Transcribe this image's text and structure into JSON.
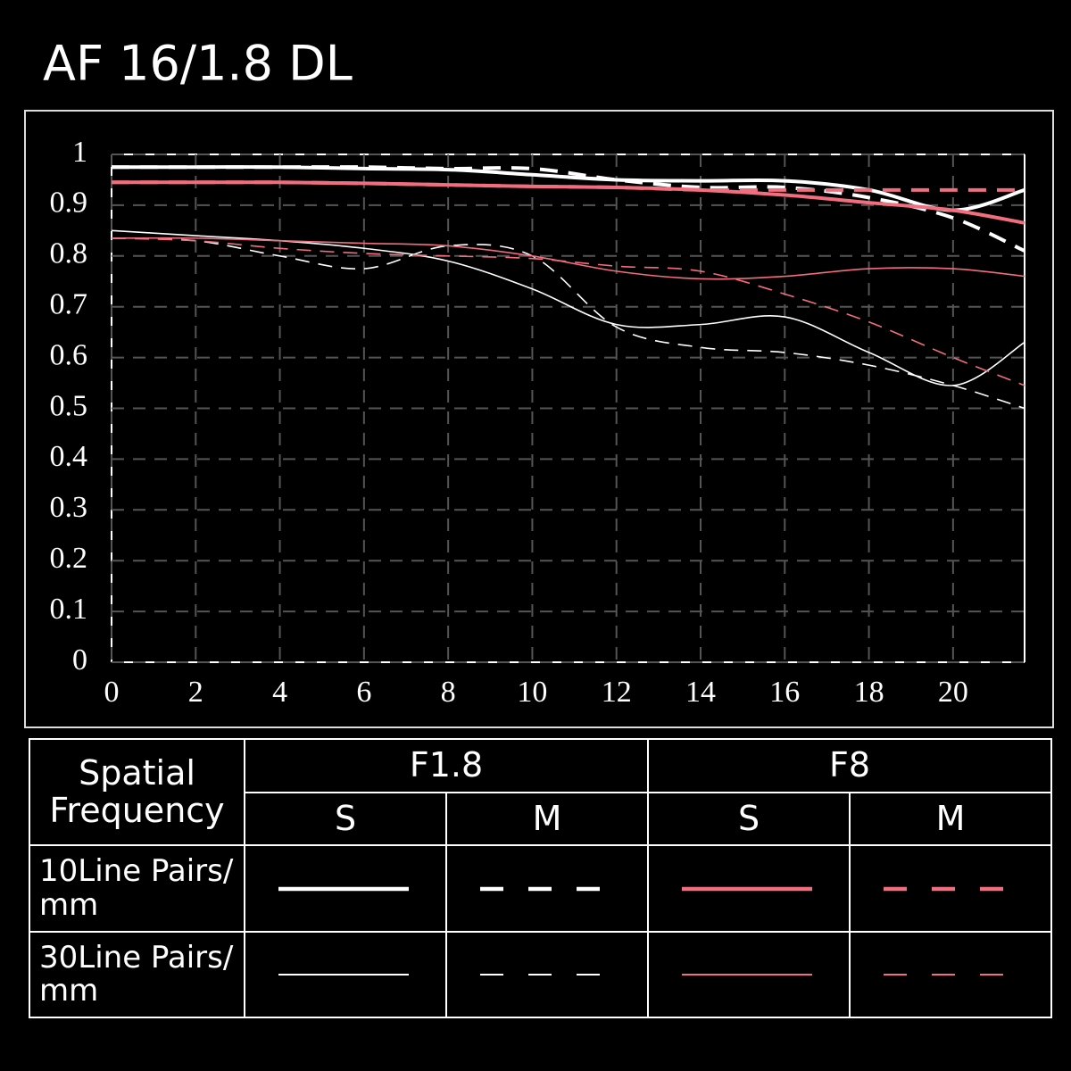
{
  "chart_data": {
    "type": "line",
    "title": "AF 16/1.8 DL",
    "x": [
      0,
      2,
      4,
      6,
      8,
      10,
      12,
      14,
      16,
      18,
      20,
      21.7
    ],
    "xlim": [
      0,
      21.7
    ],
    "xticks": [
      0,
      2,
      4,
      6,
      8,
      10,
      12,
      14,
      16,
      18,
      20
    ],
    "ylim": [
      0,
      1
    ],
    "yticks": [
      0,
      0.1,
      0.2,
      0.3,
      0.4,
      0.5,
      0.6,
      0.7,
      0.8,
      0.9,
      1
    ],
    "grid": true,
    "series": [
      {
        "color": "#ffffff",
        "width": 4,
        "dashed": false,
        "values": [
          0.975,
          0.975,
          0.975,
          0.972,
          0.97,
          0.96,
          0.95,
          0.948,
          0.948,
          0.93,
          0.89,
          0.93
        ]
      },
      {
        "color": "#ffffff",
        "width": 4,
        "dashed": true,
        "values": [
          0.975,
          0.975,
          0.975,
          0.975,
          0.972,
          0.972,
          0.95,
          0.935,
          0.935,
          0.915,
          0.875,
          0.81
        ]
      },
      {
        "color": "#f26d7d",
        "width": 4,
        "dashed": false,
        "values": [
          0.945,
          0.945,
          0.945,
          0.943,
          0.94,
          0.937,
          0.935,
          0.93,
          0.92,
          0.905,
          0.89,
          0.865
        ]
      },
      {
        "color": "#f26d7d",
        "width": 4,
        "dashed": true,
        "values": [
          0.945,
          0.945,
          0.945,
          0.943,
          0.94,
          0.937,
          0.935,
          0.93,
          0.93,
          0.93,
          0.93,
          0.93
        ]
      },
      {
        "color": "#ffffff",
        "width": 1.6,
        "dashed": false,
        "values": [
          0.85,
          0.84,
          0.83,
          0.815,
          0.79,
          0.735,
          0.665,
          0.665,
          0.68,
          0.61,
          0.545,
          0.63
        ]
      },
      {
        "color": "#ffffff",
        "width": 1.6,
        "dashed": true,
        "values": [
          0.835,
          0.83,
          0.8,
          0.775,
          0.82,
          0.8,
          0.66,
          0.62,
          0.61,
          0.585,
          0.545,
          0.5
        ]
      },
      {
        "color": "#f26d7d",
        "width": 1.6,
        "dashed": false,
        "values": [
          0.835,
          0.835,
          0.83,
          0.825,
          0.82,
          0.8,
          0.77,
          0.755,
          0.76,
          0.775,
          0.775,
          0.76
        ]
      },
      {
        "color": "#f26d7d",
        "width": 1.6,
        "dashed": true,
        "values": [
          0.835,
          0.83,
          0.815,
          0.805,
          0.8,
          0.795,
          0.78,
          0.77,
          0.725,
          0.67,
          0.6,
          0.545
        ]
      }
    ]
  },
  "legend_table": {
    "corner": "Spatial Frequency",
    "groups": [
      "F1.8",
      "F8"
    ],
    "subheaders": [
      "S",
      "M",
      "S",
      "M"
    ],
    "rows": [
      "10Line Pairs/ mm",
      "30Line Pairs/ mm"
    ]
  }
}
